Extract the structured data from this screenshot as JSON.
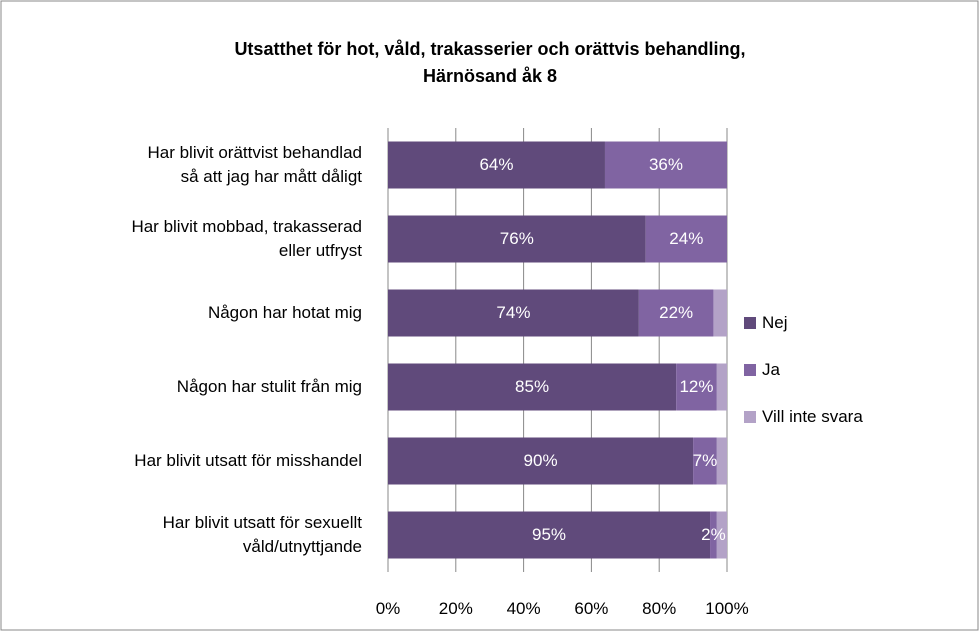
{
  "chart_data": {
    "type": "stacked_barh",
    "title": "Utsatthet för hot, våld, trakasserier och orättvis behandling,\nHärnösand åk 8",
    "categories": [
      "Har blivit orättvist behandlad\nså att jag har mått dåligt",
      "Har blivit mobbad, trakasserad\neller utfryst",
      "Någon har hotat mig",
      "Någon har stulit från mig",
      "Har blivit utsatt för misshandel",
      "Har blivit utsatt för sexuellt\nvåld/utnyttjande"
    ],
    "series": [
      {
        "name": "Nej",
        "color": "#604a7b",
        "values": [
          64,
          76,
          74,
          85,
          90,
          95
        ],
        "value_labels": [
          "64%",
          "76%",
          "74%",
          "85%",
          "90%",
          "95%"
        ]
      },
      {
        "name": "Ja",
        "color": "#8064a2",
        "values": [
          36,
          24,
          22,
          12,
          7,
          2
        ],
        "value_labels": [
          "36%",
          "24%",
          "22%",
          "12%",
          "7%",
          "2%"
        ]
      },
      {
        "name": "Vill inte svara",
        "color": "#b3a2c7",
        "values": [
          0,
          0,
          4,
          3,
          3,
          3
        ]
      }
    ],
    "xlim": [
      0,
      100
    ],
    "xticks": [
      {
        "value": 0,
        "label": "0%"
      },
      {
        "value": 20,
        "label": "20%"
      },
      {
        "value": 40,
        "label": "40%"
      },
      {
        "value": 60,
        "label": "60%"
      },
      {
        "value": 80,
        "label": "80%"
      },
      {
        "value": 100,
        "label": "100%"
      }
    ],
    "grid": true,
    "legend": "right"
  }
}
